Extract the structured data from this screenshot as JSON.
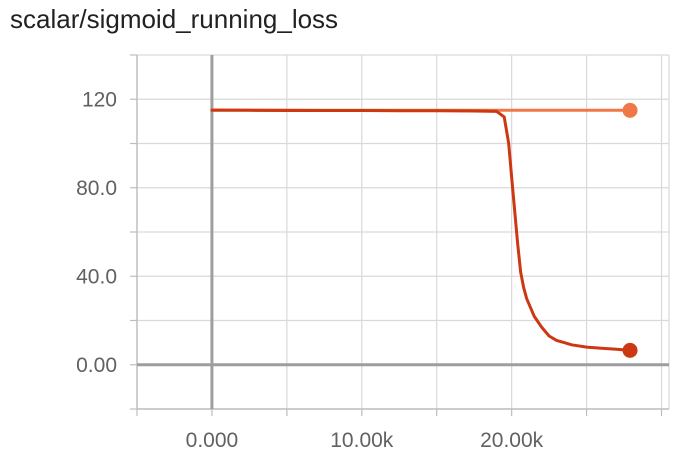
{
  "card": {
    "title": "scalar/sigmoid_running_loss"
  },
  "chart_data": {
    "type": "line",
    "title": "scalar/sigmoid_running_loss",
    "xlabel": "",
    "ylabel": "",
    "xlim": [
      -5000,
      30500
    ],
    "ylim": [
      -20,
      140
    ],
    "x_ticks": [
      0,
      10000,
      20000
    ],
    "x_tick_labels": [
      "0.000",
      "10.00k",
      "20.00k"
    ],
    "y_ticks": [
      0,
      40,
      80,
      120
    ],
    "y_tick_labels": [
      "0.00",
      "40.0",
      "80.0",
      "120"
    ],
    "grid": true,
    "legend": "none",
    "series": [
      {
        "color": "#f07848",
        "x": [
          0,
          2500,
          5000,
          7500,
          10000,
          12500,
          15000,
          17500,
          20000,
          22500,
          25000,
          27900
        ],
        "y": [
          115.2,
          115.1,
          115.1,
          115.0,
          115.0,
          115.0,
          115.0,
          115.0,
          115.0,
          115.0,
          115.0,
          115.0
        ]
      },
      {
        "color": "#cc3811",
        "x": [
          0,
          2500,
          5000,
          7500,
          10000,
          12500,
          15000,
          17500,
          19000,
          19500,
          19800,
          20000,
          20200,
          20400,
          20600,
          20800,
          21000,
          21500,
          22000,
          22500,
          23000,
          23500,
          24000,
          25000,
          26000,
          27000,
          27900
        ],
        "y": [
          115.0,
          115.0,
          114.9,
          114.9,
          114.9,
          114.8,
          114.8,
          114.7,
          114.5,
          112.0,
          100.0,
          85.0,
          70.0,
          55.0,
          42.0,
          35.0,
          30.0,
          22.0,
          17.0,
          13.0,
          11.0,
          10.0,
          9.0,
          8.0,
          7.5,
          7.0,
          6.5
        ]
      }
    ]
  }
}
